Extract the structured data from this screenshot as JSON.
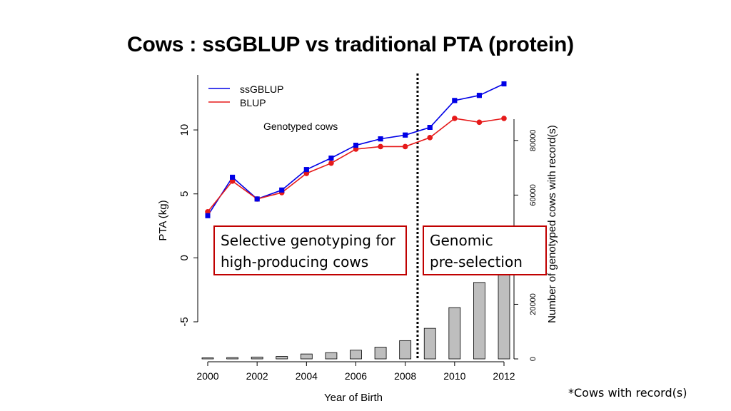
{
  "title": "Cows : ssGBLUP vs traditional PTA (protein)",
  "footnote": "*Cows with record(s)",
  "annotations": {
    "selective_line1": "Selective genotyping for",
    "selective_line2": "high-producing cows",
    "genomic_line1": "Genomic",
    "genomic_line2": "pre-selection",
    "box_border_color": "#c00000"
  },
  "chart_data": {
    "type": "line",
    "xlabel": "Year of Birth",
    "ylabel": "PTA (kg)",
    "y2label": "Number of genotyped cows with record(s)",
    "x": [
      2000,
      2001,
      2002,
      2003,
      2004,
      2005,
      2006,
      2007,
      2008,
      2009,
      2010,
      2011,
      2012
    ],
    "x_ticks": [
      2000,
      2002,
      2004,
      2006,
      2008,
      2010,
      2012
    ],
    "y_ticks": [
      -5,
      0,
      5,
      10
    ],
    "y2_ticks": [
      0,
      20000,
      60000,
      80000
    ],
    "ylim": [
      -7.9,
      14.3
    ],
    "y2lim": [
      0,
      104000
    ],
    "series": [
      {
        "name": "ssGBLUP",
        "color": "#0000e6",
        "marker": "square",
        "values": [
          3.3,
          6.3,
          4.6,
          5.3,
          6.9,
          7.8,
          8.8,
          9.3,
          9.6,
          10.2,
          12.3,
          12.7,
          13.6
        ]
      },
      {
        "name": "BLUP",
        "color": "#e61a1a",
        "marker": "circle",
        "values": [
          3.6,
          6.0,
          4.6,
          5.1,
          6.6,
          7.4,
          8.5,
          8.7,
          8.7,
          9.4,
          10.9,
          10.6,
          10.9
        ]
      }
    ],
    "bars": {
      "color": "#bebebe",
      "values": [
        400,
        500,
        700,
        900,
        1800,
        2300,
        3200,
        4300,
        6700,
        11200,
        18800,
        28000,
        48000
      ]
    },
    "vline_x": 2008.5,
    "legend_position": "top-left",
    "inline_label": "Genotyped cows"
  }
}
